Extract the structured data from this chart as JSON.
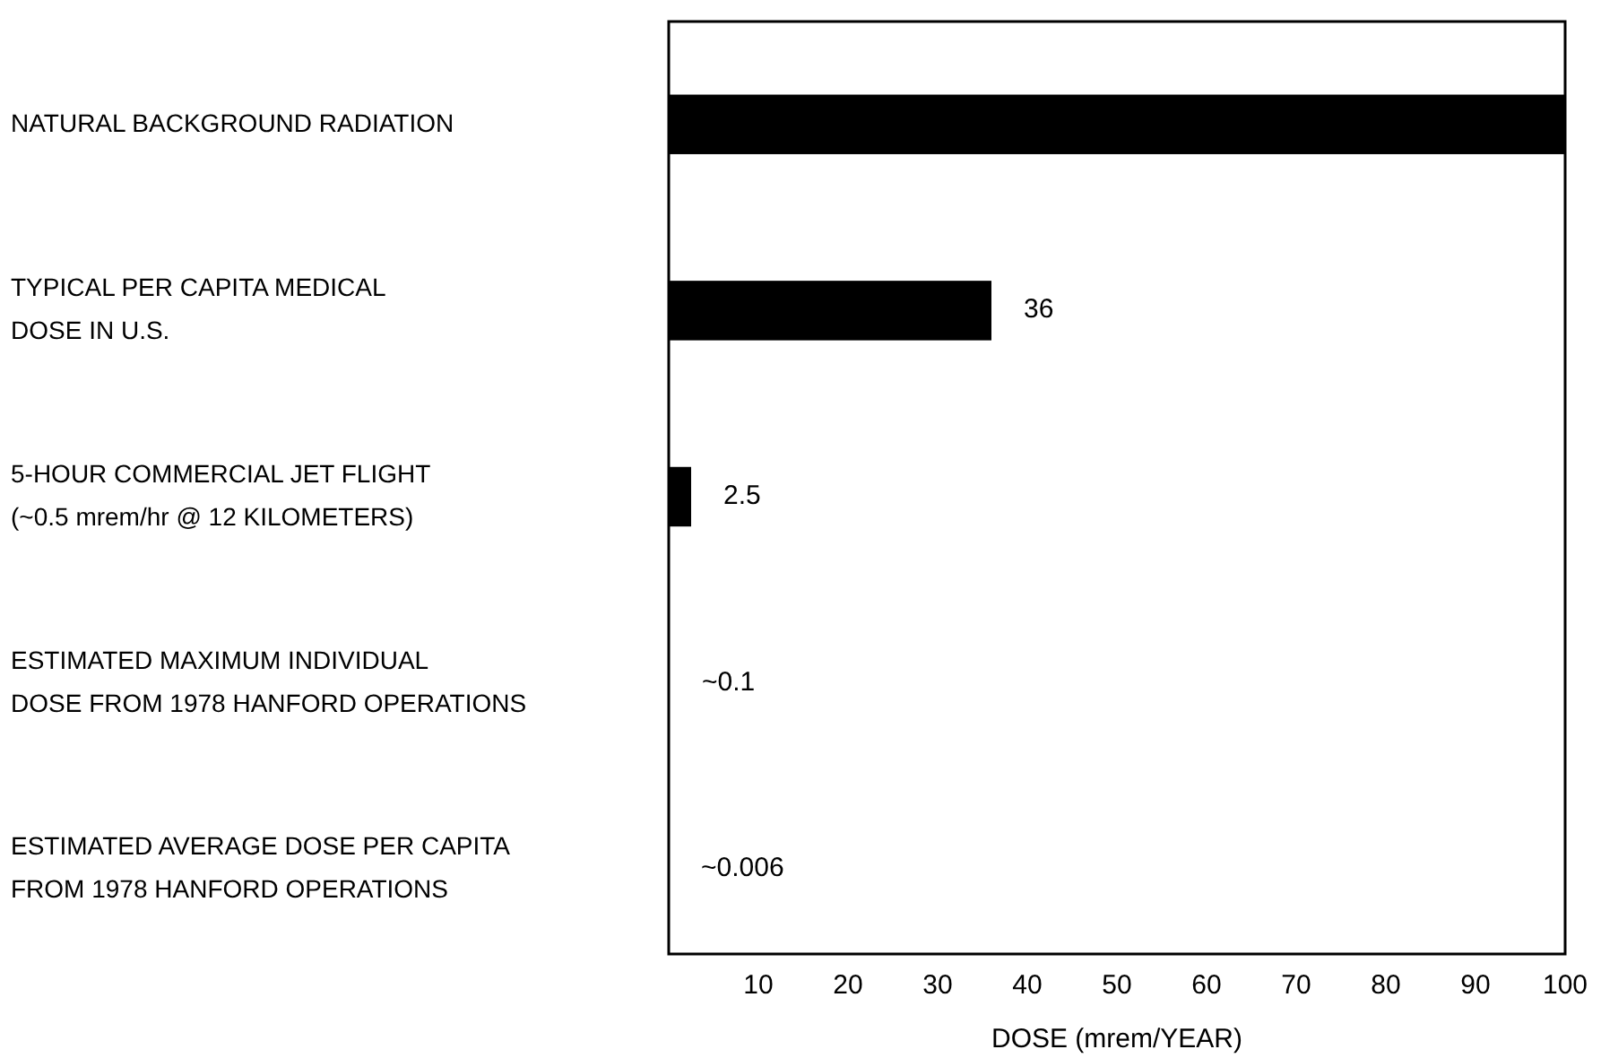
{
  "chart_data": {
    "type": "bar",
    "orientation": "horizontal",
    "xlabel": "DOSE (mrem/YEAR)",
    "categories": [
      "NATURAL BACKGROUND RADIATION",
      "TYPICAL PER CAPITA MEDICAL\nDOSE IN U.S.",
      "5-HOUR COMMERCIAL JET FLIGHT\n(~0.5 mrem/hr @ 12 KILOMETERS)",
      "ESTIMATED MAXIMUM INDIVIDUAL\nDOSE FROM 1978 HANFORD OPERATIONS",
      "ESTIMATED AVERAGE DOSE PER CAPITA\nFROM 1978 HANFORD OPERATIONS"
    ],
    "values": [
      100,
      36,
      2.5,
      0.1,
      0.006
    ],
    "value_labels": [
      null,
      "36",
      "2.5",
      "~0.1",
      "~0.006"
    ],
    "color": "#000000",
    "xlim": [
      0,
      100
    ],
    "xticks": [
      10,
      20,
      30,
      40,
      50,
      60,
      70,
      80,
      90,
      100
    ],
    "grid": false
  }
}
